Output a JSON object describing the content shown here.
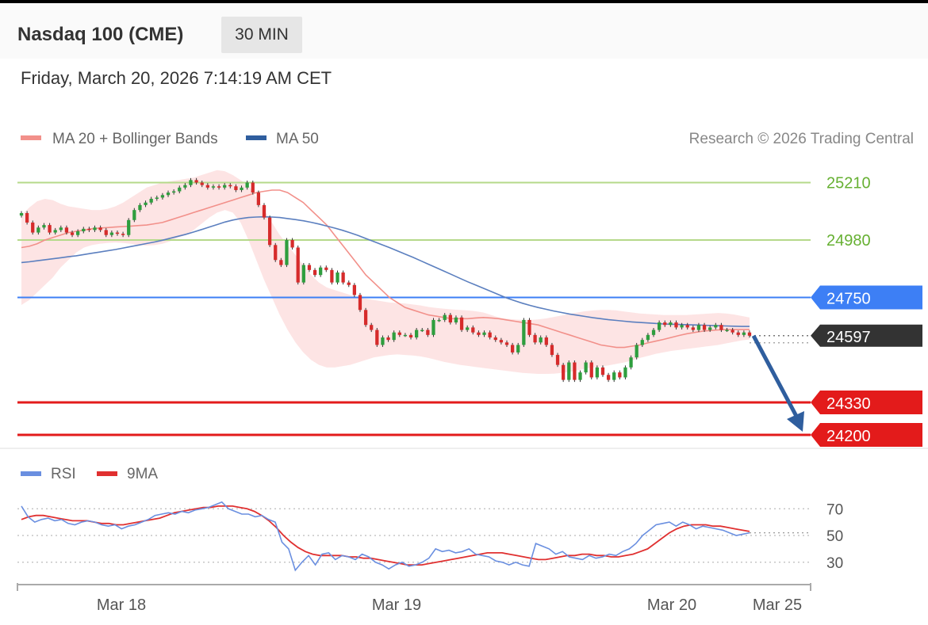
{
  "header": {
    "title": "Nasdaq 100 (CME)",
    "timeframe": "30 MIN",
    "datetime": "Friday, March 20, 2026 7:14:19 AM CET"
  },
  "legend": {
    "ma20_label": "MA 20 + Bollinger Bands",
    "ma50_label": "MA 50",
    "copyright": "Research © 2026 Trading Central",
    "rsi_label": "RSI",
    "rsi_ma_label": "9MA"
  },
  "colors": {
    "up": "#2e9e3e",
    "down": "#d62b2b",
    "ma20": "#f2908a",
    "ma50": "#5b7fbf",
    "bands": "#fde1e1",
    "resistance": "#b5d98a",
    "resistance_text": "#66b032",
    "pivot": "#3d7ff5",
    "support": "#e31b1b",
    "last_price": "#333333",
    "rsi": "#6a8fe0",
    "rsi_ma": "#e03030",
    "arrow": "#2f5e9e"
  },
  "chart_data": [
    {
      "type": "candlestick",
      "title": "",
      "x_labels": [
        "Mar 18",
        "Mar 19",
        "Mar 20",
        "Mar 25"
      ],
      "ylim": [
        24165,
        25275
      ],
      "levels": [
        {
          "label": "25210",
          "value": 25210,
          "kind": "resistance"
        },
        {
          "label": "24980",
          "value": 24980,
          "kind": "resistance"
        },
        {
          "label": "24750",
          "value": 24750,
          "kind": "pivot"
        },
        {
          "label": "24597",
          "value": 24597,
          "kind": "last"
        },
        {
          "label": "24330",
          "value": 24330,
          "kind": "support"
        },
        {
          "label": "24200",
          "value": 24200,
          "kind": "support"
        }
      ],
      "close": [
        25088,
        25050,
        25010,
        25030,
        25040,
        25010,
        25020,
        25030,
        25010,
        25000,
        25015,
        25025,
        25020,
        25030,
        25020,
        25000,
        25010,
        25005,
        25000,
        25060,
        25100,
        25120,
        25130,
        25145,
        25150,
        25160,
        25170,
        25175,
        25190,
        25200,
        25220,
        25210,
        25200,
        25190,
        25195,
        25190,
        25200,
        25195,
        25180,
        25190,
        25210,
        25170,
        25120,
        25070,
        24960,
        24900,
        24880,
        24980,
        24950,
        24810,
        24880,
        24860,
        24840,
        24870,
        24860,
        24810,
        24850,
        24810,
        24800,
        24760,
        24700,
        24640,
        24620,
        24560,
        24590,
        24580,
        24610,
        24600,
        24600,
        24590,
        24620,
        24620,
        24600,
        24660,
        24660,
        24680,
        24650,
        24670,
        24620,
        24630,
        24610,
        24600,
        24610,
        24590,
        24580,
        24570,
        24560,
        24530,
        24560,
        24660,
        24600,
        24570,
        24590,
        24560,
        24520,
        24480,
        24420,
        24490,
        24420,
        24450,
        24490,
        24430,
        24470,
        24440,
        24420,
        24450,
        24430,
        24470,
        24510,
        24560,
        24580,
        24600,
        24620,
        24650,
        24640,
        24650,
        24630,
        24640,
        24630,
        24620,
        24640,
        24620,
        24630,
        24640,
        24620,
        24620,
        24610,
        24600,
        24610,
        24597
      ],
      "ma20": [
        24950,
        24955,
        24965,
        24980,
        24990,
        25000,
        25010,
        25015,
        25020,
        25025,
        25028,
        25030,
        25032,
        25034,
        25036,
        25038,
        25040,
        25045,
        25050,
        25060,
        25070,
        25080,
        25090,
        25100,
        25110,
        25120,
        25130,
        25140,
        25150,
        25160,
        25170,
        25175,
        25180,
        25180,
        25170,
        25150,
        25130,
        25100,
        25070,
        25040,
        25000,
        24960,
        24920,
        24880,
        24840,
        24810,
        24780,
        24750,
        24730,
        24710,
        24700,
        24690,
        24680,
        24675,
        24670,
        24665,
        24665,
        24665,
        24668,
        24670,
        24668,
        24665,
        24660,
        24655,
        24650,
        24645,
        24640,
        24630,
        24620,
        24610,
        24600,
        24590,
        24580,
        24570,
        24560,
        24555,
        24550,
        24550,
        24555,
        24560,
        24568,
        24575,
        24582,
        24590,
        24598,
        24605,
        24610,
        24615,
        24618,
        24620,
        24622,
        24622,
        24622,
        24622
      ],
      "bb_upper": [
        25080,
        25110,
        25135,
        25145,
        25140,
        25125,
        25115,
        25110,
        25105,
        25100,
        25100,
        25105,
        25115,
        25130,
        25150,
        25170,
        25190,
        25200,
        25210,
        25215,
        25220,
        25225,
        25230,
        25240,
        25250,
        25260,
        25255,
        25240,
        25220,
        25200,
        25150,
        25100,
        25050,
        25000,
        24960,
        24920,
        24880,
        24840,
        24810,
        24790,
        24780,
        24770,
        24760,
        24750,
        24745,
        24740,
        24735,
        24730,
        24728,
        24726,
        24722,
        24718,
        24712,
        24708,
        24705,
        24702,
        24700,
        24698,
        24695,
        24690,
        24680,
        24670,
        24665,
        24662,
        24660,
        24660,
        24662,
        24666,
        24672,
        24678,
        24684,
        24690,
        24695,
        24698,
        24700,
        24700,
        24698,
        24694,
        24690,
        24686,
        24684,
        24682,
        24680,
        24680,
        24680,
        24680,
        24682,
        24684,
        24686,
        24688,
        24686,
        24682,
        24676,
        24670
      ],
      "bb_lower": [
        24720,
        24740,
        24770,
        24800,
        24830,
        24870,
        24900,
        24930,
        24950,
        24960,
        24965,
        24968,
        24970,
        24968,
        24965,
        24960,
        24958,
        24960,
        24965,
        24975,
        24990,
        25000,
        25020,
        25045,
        25070,
        25090,
        25100,
        25090,
        25050,
        24980,
        24900,
        24820,
        24750,
        24680,
        24620,
        24570,
        24530,
        24500,
        24480,
        24470,
        24470,
        24475,
        24480,
        24490,
        24500,
        24510,
        24515,
        24520,
        24522,
        24520,
        24518,
        24514,
        24508,
        24500,
        24492,
        24486,
        24480,
        24476,
        24472,
        24468,
        24464,
        24460,
        24456,
        24452,
        24448,
        24446,
        24444,
        24444,
        24445,
        24448,
        24452,
        24458,
        24465,
        24470,
        24474,
        24478,
        24484,
        24490,
        24498,
        24508,
        24516,
        24524,
        24530,
        24536,
        24540,
        24544,
        24548,
        24552,
        24556,
        24560,
        24566,
        24572,
        24578,
        24582
      ],
      "ma50": [
        24890,
        24893,
        24897,
        24901,
        24905,
        24909,
        24913,
        24917,
        24922,
        24927,
        24932,
        24937,
        24942,
        24948,
        24954,
        24960,
        24966,
        24972,
        24979,
        24987,
        24995,
        25003,
        25012,
        25022,
        25032,
        25042,
        25052,
        25060,
        25066,
        25070,
        25072,
        25073,
        25072,
        25070,
        25066,
        25062,
        25057,
        25051,
        25044,
        25036,
        25028,
        25019,
        25009,
        24998,
        24986,
        24974,
        24962,
        24950,
        24937,
        24924,
        24911,
        24897,
        24883,
        24869,
        24855,
        24841,
        24827,
        24813,
        24800,
        24787,
        24774,
        24761,
        24748,
        24737,
        24727,
        24718,
        24710,
        24703,
        24696,
        24690,
        24684,
        24679,
        24674,
        24669,
        24665,
        24661,
        24658,
        24655,
        24652,
        24650,
        24648,
        24646,
        24644,
        24643,
        24642,
        24641,
        24640,
        24639,
        24638,
        24637,
        24636,
        24635,
        24634,
        24634
      ]
    },
    {
      "type": "line",
      "title": "",
      "series": [
        {
          "name": "RSI",
          "values": [
            72,
            64,
            60,
            62,
            63,
            61,
            62,
            59,
            58,
            60,
            61,
            60,
            58,
            57,
            58,
            55,
            57,
            58,
            60,
            62,
            65,
            66,
            67,
            66,
            68,
            67,
            69,
            70,
            71,
            73,
            75,
            70,
            68,
            66,
            66,
            64,
            65,
            62,
            60,
            45,
            40,
            24,
            30,
            35,
            28,
            36,
            37,
            32,
            35,
            34,
            32,
            36,
            34,
            30,
            28,
            25,
            28,
            30,
            27,
            28,
            30,
            33,
            40,
            38,
            39,
            37,
            38,
            40,
            36,
            35,
            34,
            31,
            30,
            28,
            30,
            28,
            27,
            44,
            42,
            40,
            36,
            38,
            34,
            33,
            32,
            35,
            33,
            34,
            36,
            35,
            38,
            40,
            44,
            50,
            54,
            58,
            59,
            60,
            57,
            60,
            58,
            55,
            57,
            56,
            55,
            54,
            52,
            50,
            51,
            52
          ]
        },
        {
          "name": "9MA",
          "values": [
            62,
            64,
            65,
            65,
            64,
            63,
            62,
            61,
            61,
            61,
            60,
            59,
            59,
            58,
            58,
            59,
            60,
            61,
            62,
            63,
            65,
            67,
            68,
            69,
            70,
            71,
            71,
            72,
            72,
            72,
            71,
            70,
            68,
            65,
            61,
            56,
            50,
            45,
            41,
            38,
            36,
            35,
            35,
            35,
            35,
            34,
            34,
            33,
            33,
            32,
            31,
            30,
            29,
            28,
            28,
            28,
            29,
            30,
            31,
            32,
            33,
            34,
            35,
            36,
            37,
            37,
            37,
            36,
            35,
            34,
            33,
            32,
            32,
            33,
            34,
            35,
            35,
            36,
            36,
            35,
            35,
            34,
            34,
            35,
            36,
            38,
            40,
            44,
            48,
            52,
            55,
            57,
            58,
            58,
            58,
            57,
            57,
            56,
            55,
            54,
            53
          ]
        }
      ],
      "y_ticks": [
        70,
        50,
        30
      ],
      "ylim": [
        18,
        82
      ],
      "x_labels": [
        "Mar 18",
        "Mar 19",
        "Mar 20",
        "Mar 25"
      ]
    }
  ]
}
